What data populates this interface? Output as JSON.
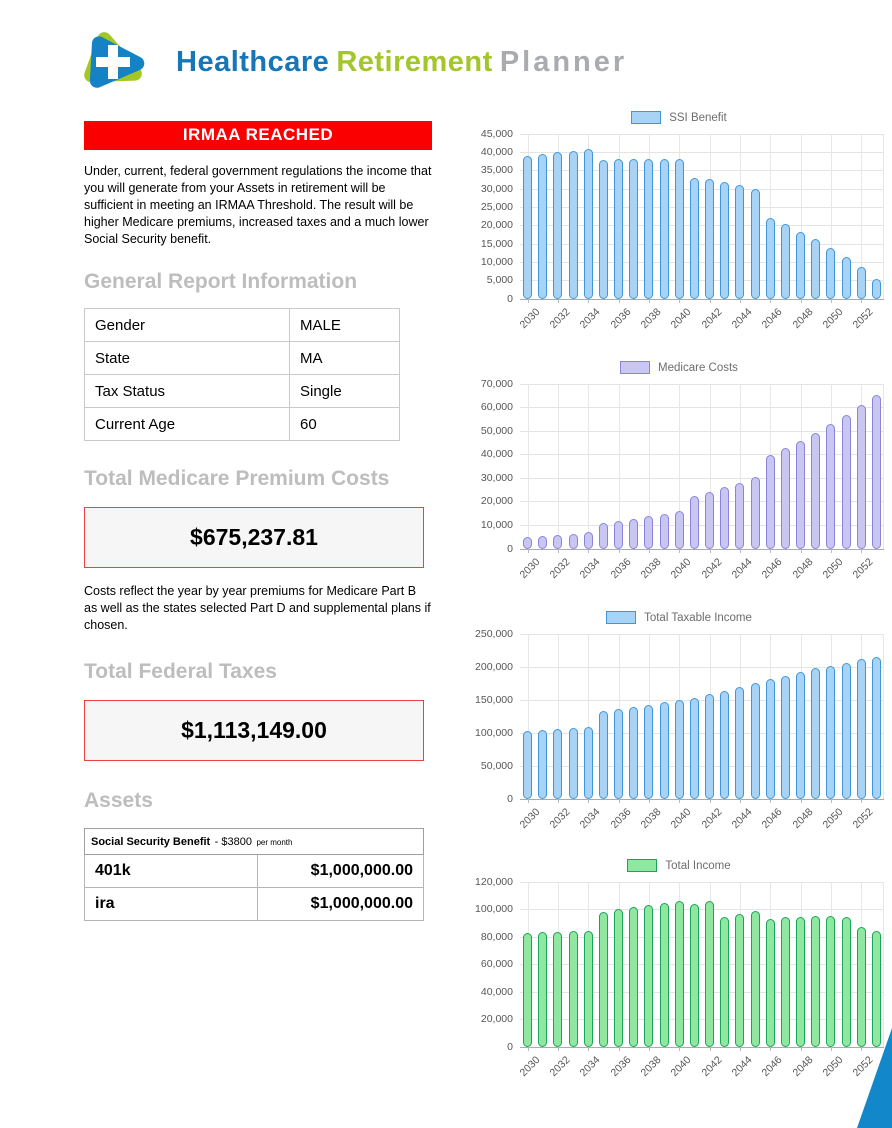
{
  "header": {
    "title_part1": "Healthcare",
    "title_part2": "Retirement",
    "title_part3": "Planner"
  },
  "alert": {
    "banner": "IRMAA REACHED",
    "description": "Under, current, federal government regulations the income that you will generate from your Assets in retirement will be sufficient in meeting an IRMAA Threshold. The result will be higher Medicare premiums, increased taxes and a much lower Social Security benefit."
  },
  "general_info": {
    "heading": "General Report Information",
    "rows": [
      {
        "label": "Gender",
        "value": "MALE"
      },
      {
        "label": "State",
        "value": "MA"
      },
      {
        "label": "Tax Status",
        "value": "Single"
      },
      {
        "label": "Current Age",
        "value": "60"
      }
    ]
  },
  "medicare": {
    "heading": "Total Medicare Premium Costs",
    "amount": "$675,237.81",
    "note": "Costs reflect the year by year premiums for Medicare Part B as well as the states selected Part D and supplemental plans if chosen."
  },
  "taxes": {
    "heading": "Total Federal Taxes",
    "amount": "$1,113,149.00"
  },
  "assets": {
    "heading": "Assets",
    "social_security_label": "Social Security Benefit",
    "social_security_value": "- $3800",
    "social_security_unit": "per month",
    "rows": [
      {
        "label": "401k",
        "value": "$1,000,000.00"
      },
      {
        "label": "ira",
        "value": "$1,000,000.00"
      }
    ]
  },
  "colors": {
    "banner_red": "#fb0000",
    "box_border_red": "#e8433f",
    "heading_gray": "#bdbdbd",
    "brand_blue": "#1776b8",
    "brand_green": "#a3c62a",
    "brand_gray": "#a9abae",
    "corner_wedge_blue": "#1287c9"
  },
  "chart_data": [
    {
      "type": "bar",
      "title": "SSI Benefit",
      "bar_fill": "#a9d3f5",
      "bar_border": "#3f97d9",
      "categories": [
        2030,
        2031,
        2032,
        2033,
        2034,
        2035,
        2036,
        2037,
        2038,
        2039,
        2040,
        2041,
        2042,
        2043,
        2044,
        2045,
        2046,
        2047,
        2048,
        2049,
        2050,
        2051,
        2052,
        2053
      ],
      "values": [
        39000,
        39600,
        40100,
        40400,
        40800,
        38000,
        38100,
        38200,
        38300,
        38300,
        38200,
        33100,
        32600,
        31900,
        31100,
        30100,
        22100,
        20400,
        18400,
        16300,
        13900,
        11400,
        8700,
        5400
      ],
      "xlabel": "",
      "ylabel": "",
      "ylim": [
        0,
        45000
      ],
      "ytick_step": 5000,
      "grid": true,
      "legend_position": "top"
    },
    {
      "type": "bar",
      "title": "Medicare Costs",
      "bar_fill": "#c9c6f2",
      "bar_border": "#8b84da",
      "categories": [
        2030,
        2031,
        2032,
        2033,
        2034,
        2035,
        2036,
        2037,
        2038,
        2039,
        2040,
        2041,
        2042,
        2043,
        2044,
        2045,
        2046,
        2047,
        2048,
        2049,
        2050,
        2051,
        2052,
        2053
      ],
      "values": [
        4900,
        5400,
        5900,
        6500,
        7200,
        11200,
        11900,
        12900,
        13800,
        15000,
        16300,
        22600,
        24200,
        26300,
        28200,
        30400,
        39700,
        42700,
        45900,
        49200,
        53000,
        56800,
        61000,
        65500
      ],
      "xlabel": "",
      "ylabel": "",
      "ylim": [
        0,
        70000
      ],
      "ytick_step": 10000,
      "grid": true,
      "legend_position": "top"
    },
    {
      "type": "bar",
      "title": "Total Taxable Income",
      "bar_fill": "#a9d3f5",
      "bar_border": "#3f97d9",
      "categories": [
        2030,
        2031,
        2032,
        2033,
        2034,
        2035,
        2036,
        2037,
        2038,
        2039,
        2040,
        2041,
        2042,
        2043,
        2044,
        2045,
        2046,
        2047,
        2048,
        2049,
        2050,
        2051,
        2052,
        2053
      ],
      "values": [
        103000,
        104500,
        106000,
        107500,
        109000,
        133000,
        136500,
        140000,
        142500,
        146500,
        149500,
        153500,
        158500,
        164000,
        169500,
        175500,
        181500,
        187000,
        192000,
        198000,
        202000,
        206500,
        212000,
        215000
      ],
      "xlabel": "",
      "ylabel": "",
      "ylim": [
        0,
        250000
      ],
      "ytick_step": 50000,
      "grid": true,
      "legend_position": "top"
    },
    {
      "type": "bar",
      "title": "Total Income",
      "bar_fill": "#90e8a0",
      "bar_border": "#1aa35a",
      "categories": [
        2030,
        2031,
        2032,
        2033,
        2034,
        2035,
        2036,
        2037,
        2038,
        2039,
        2040,
        2041,
        2042,
        2043,
        2044,
        2045,
        2046,
        2047,
        2048,
        2049,
        2050,
        2051,
        2052,
        2053
      ],
      "values": [
        82800,
        83300,
        83800,
        84200,
        84500,
        98500,
        100200,
        101800,
        103200,
        104800,
        106200,
        103800,
        106000,
        94800,
        96700,
        98900,
        93200,
        94300,
        94900,
        95300,
        95300,
        94600,
        87300,
        84500
      ],
      "xlabel": "",
      "ylabel": "",
      "ylim": [
        0,
        120000
      ],
      "ytick_step": 20000,
      "grid": true,
      "legend_position": "top"
    }
  ]
}
